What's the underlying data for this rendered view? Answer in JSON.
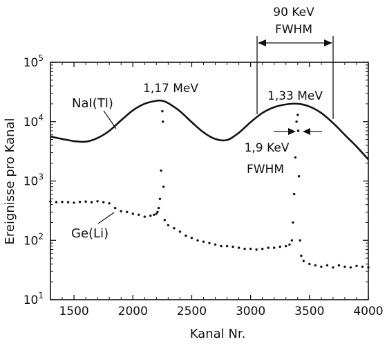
{
  "chart_data": {
    "type": "line",
    "title": "",
    "xlabel": "Kanal Nr.",
    "ylabel": "Ereignisse pro Kanal",
    "xlim": [
      1300,
      4000
    ],
    "ylim": [
      10,
      100000
    ],
    "y_scale": "log",
    "grid": false,
    "x_ticks": [
      1500,
      2000,
      2500,
      3000,
      3500,
      4000
    ],
    "x_tick_labels": [
      "1500",
      "2000",
      "2500",
      "3000",
      "3500",
      "4000"
    ],
    "y_ticks": [
      10,
      100,
      1000,
      10000,
      100000
    ],
    "y_tick_labels": [
      {
        "base": "10",
        "exp": "1"
      },
      {
        "base": "10",
        "exp": "2"
      },
      {
        "base": "10",
        "exp": "3"
      },
      {
        "base": "10",
        "exp": "4"
      },
      {
        "base": "10",
        "exp": "5"
      }
    ],
    "series": [
      {
        "name": "NaI(Tl)",
        "style": "solid",
        "x": [
          1300,
          1400,
          1500,
          1600,
          1700,
          1800,
          1900,
          2000,
          2100,
          2200,
          2250,
          2300,
          2400,
          2500,
          2600,
          2700,
          2800,
          2900,
          3000,
          3100,
          3200,
          3300,
          3400,
          3500,
          3600,
          3700,
          3800,
          3900,
          4000
        ],
        "y": [
          5600,
          5100,
          4700,
          4600,
          5300,
          7000,
          10500,
          15500,
          20000,
          22500,
          22500,
          20500,
          15000,
          9800,
          6600,
          5100,
          4900,
          6500,
          9800,
          14000,
          17500,
          19500,
          20000,
          18000,
          14000,
          9500,
          6000,
          3800,
          2300
        ]
      },
      {
        "name": "Ge(Li)",
        "style": "dotted",
        "x": [
          1300,
          1350,
          1400,
          1450,
          1500,
          1550,
          1600,
          1650,
          1700,
          1750,
          1800,
          1850,
          1900,
          1950,
          2000,
          2050,
          2100,
          2150,
          2180,
          2200,
          2210,
          2220,
          2230,
          2240,
          2250,
          2255,
          2260,
          2270,
          2300,
          2350,
          2400,
          2450,
          2500,
          2550,
          2600,
          2650,
          2700,
          2750,
          2800,
          2850,
          2900,
          2950,
          3000,
          3050,
          3100,
          3150,
          3200,
          3250,
          3300,
          3330,
          3350,
          3360,
          3370,
          3380,
          3390,
          3400,
          3405,
          3410,
          3420,
          3430,
          3450,
          3500,
          3550,
          3600,
          3650,
          3700,
          3750,
          3800,
          3850,
          3900,
          3950,
          4000
        ],
        "y": [
          450,
          440,
          445,
          440,
          430,
          445,
          450,
          440,
          455,
          440,
          420,
          350,
          310,
          300,
          280,
          270,
          250,
          260,
          270,
          280,
          300,
          350,
          500,
          1500,
          15000,
          10000,
          800,
          220,
          180,
          160,
          140,
          120,
          110,
          100,
          95,
          90,
          85,
          80,
          80,
          78,
          75,
          72,
          72,
          70,
          72,
          75,
          75,
          78,
          80,
          85,
          100,
          200,
          600,
          2500,
          10000,
          13000,
          7000,
          1200,
          100,
          55,
          45,
          40,
          38,
          36,
          38,
          35,
          38,
          36,
          35,
          37,
          36,
          35
        ]
      }
    ],
    "annotations": [
      {
        "text": "1,17 MeV",
        "x": 2250,
        "y": 22500
      },
      {
        "text": "1,33 MeV",
        "x": 3400,
        "y": 20000
      },
      {
        "text": "90 KeV",
        "x": 3370,
        "y": 100000
      },
      {
        "text": "FWHM",
        "x": 3370,
        "y": 100000
      },
      {
        "text": "1,9 KeV",
        "x": 3400,
        "y": 10000
      },
      {
        "text": "FWHM",
        "x": 3400,
        "y": 10000
      }
    ]
  },
  "labels": {
    "nai_label": "NaI(Tl)",
    "ge_label": "Ge(Li)",
    "peak1": "1,17 MeV",
    "peak2": "1,33 MeV",
    "fwhm_wide_value": "90 KeV",
    "fwhm_wide_unit": "FWHM",
    "fwhm_narrow_value": "1,9 KeV",
    "fwhm_narrow_unit": "FWHM"
  }
}
